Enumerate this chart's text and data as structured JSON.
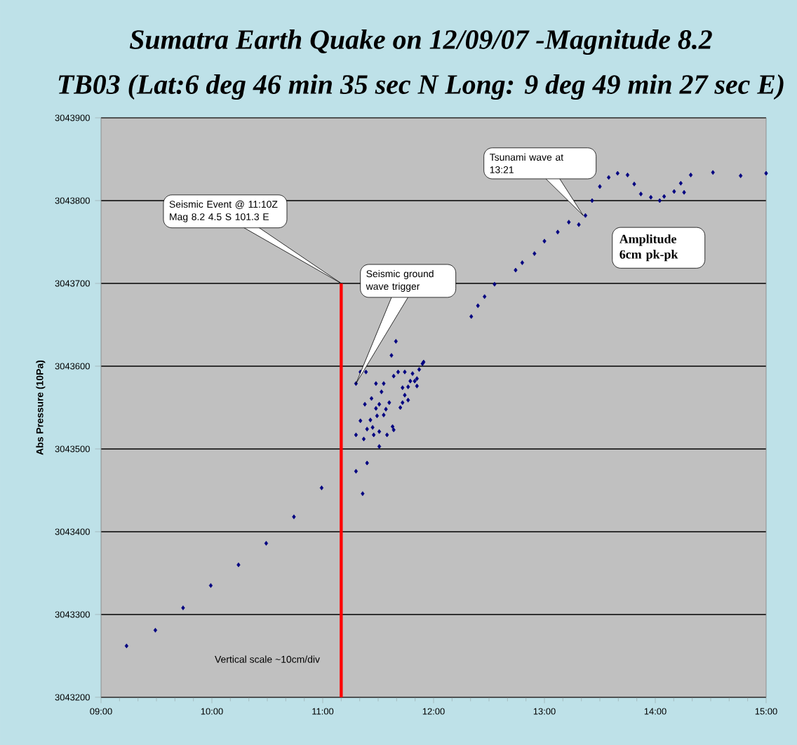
{
  "chart_data": {
    "type": "scatter",
    "title": "Sumatra Earth Quake on 12/09/07 -Magnitude 8.2",
    "subtitle": "TB03 (Lat:6 deg 46 min 35 sec N Long: 9 deg 49 min 27 sec E)",
    "ylabel": "Abs Pressure (10Pa)",
    "xlim": [
      9,
      15
    ],
    "xticks": [
      {
        "value": 9,
        "label": "09:00"
      },
      {
        "value": 10,
        "label": "10:00"
      },
      {
        "value": 11,
        "label": "11:00"
      },
      {
        "value": 12,
        "label": "12:00"
      },
      {
        "value": 13,
        "label": "13:00"
      },
      {
        "value": 14,
        "label": "14:00"
      },
      {
        "value": 15,
        "label": "15:00"
      }
    ],
    "ylim": [
      3043200,
      3043900
    ],
    "yticks": [
      3043200,
      3043300,
      3043400,
      3043500,
      3043600,
      3043700,
      3043800,
      3043900
    ],
    "grid": "y",
    "series": [
      {
        "marker": "diamond",
        "color": "#000080",
        "x": [
          9.23,
          9.49,
          9.74,
          9.99,
          10.24,
          10.49,
          10.74,
          10.99,
          11.3,
          11.34,
          11.39,
          11.66,
          11.62,
          11.48,
          11.55,
          11.53,
          11.44,
          11.38,
          11.51,
          11.6,
          11.48,
          11.57,
          11.34,
          11.43,
          11.49,
          11.55,
          11.3,
          11.37,
          11.4,
          11.45,
          11.46,
          11.51,
          11.58,
          11.63,
          11.64,
          11.51,
          11.4,
          11.3,
          11.36,
          11.64,
          11.68,
          11.74,
          11.81,
          11.87,
          11.9,
          11.85,
          11.72,
          11.77,
          11.83,
          11.74,
          11.77,
          11.72,
          11.7,
          11.79,
          11.85,
          11.91,
          12.34,
          12.4,
          12.46,
          12.55,
          12.74,
          12.8,
          12.91,
          13.0,
          13.12,
          13.22,
          13.31,
          13.37,
          13.43,
          13.5,
          13.58,
          13.66,
          13.75,
          13.81,
          13.87,
          13.96,
          14.04,
          14.08,
          14.17,
          14.23,
          14.32,
          14.26,
          14.52,
          14.77,
          15.0
        ],
        "values": [
          3043262,
          3043281,
          3043308,
          3043335,
          3043360,
          3043386,
          3043418,
          3043453,
          3043579,
          3043593,
          3043593,
          3043630,
          3043613,
          3043579,
          3043579,
          3043569,
          3043561,
          3043554,
          3043554,
          3043556,
          3043549,
          3043548,
          3043534,
          3043535,
          3043540,
          3043541,
          3043517,
          3043512,
          3043524,
          3043526,
          3043517,
          3043521,
          3043517,
          3043527,
          3043523,
          3043503,
          3043483,
          3043473,
          3043446,
          3043588,
          3043593,
          3043593,
          3043591,
          3043596,
          3043603,
          3043585,
          3043574,
          3043575,
          3043582,
          3043565,
          3043559,
          3043556,
          3043550,
          3043582,
          3043576,
          3043605,
          3043660,
          3043673,
          3043684,
          3043699,
          3043716,
          3043725,
          3043736,
          3043751,
          3043762,
          3043774,
          3043771,
          3043782,
          3043800,
          3043817,
          3043828,
          3043833,
          3043831,
          3043820,
          3043808,
          3043804,
          3043800,
          3043805,
          3043811,
          3043821,
          3043831,
          3043810,
          3043834,
          3043830,
          3043833
        ]
      },
      {
        "type": "line",
        "color": "#ff0000",
        "x": [
          11.1667,
          11.1667
        ],
        "values": [
          3043200,
          3043700
        ]
      }
    ],
    "annotations": [
      "Seismic Event @ 11:10Z Mag 8.2 4.5 S  101.3 E",
      "Seismic ground wave trigger",
      "Tsunami wave at 13:21",
      "Amplitude 6cm pk-pk",
      "Vertical scale ~10cm/div"
    ]
  }
}
